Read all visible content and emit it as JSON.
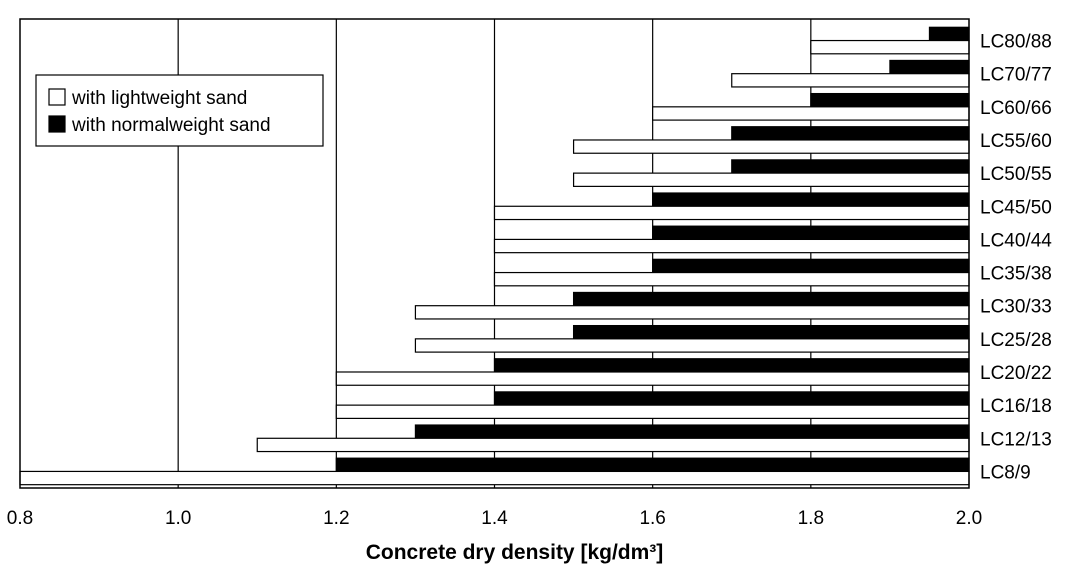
{
  "chart_data": {
    "type": "bar",
    "orientation": "horizontal",
    "xlabel": "Concrete dry density [kg/dm³]",
    "xlim": [
      0.8,
      2.0
    ],
    "xticks": [
      "0.8",
      "1.0",
      "1.2",
      "1.4",
      "1.6",
      "1.8",
      "2.0"
    ],
    "grid": "vertical",
    "legend_position": "upper-left",
    "bar_max": 2.0,
    "categories": [
      "LC80/88",
      "LC70/77",
      "LC60/66",
      "LC55/60",
      "LC50/55",
      "LC45/50",
      "LC40/44",
      "LC35/38",
      "LC30/33",
      "LC25/28",
      "LC20/22",
      "LC16/18",
      "LC12/13",
      "LC8/9"
    ],
    "series": [
      {
        "name": "with normalweight sand",
        "color": "#000000",
        "values": [
          1.95,
          1.9,
          1.8,
          1.7,
          1.7,
          1.6,
          1.6,
          1.6,
          1.5,
          1.5,
          1.4,
          1.4,
          1.3,
          1.2
        ]
      },
      {
        "name": "with lightweight sand",
        "color": "#ffffff",
        "values": [
          1.8,
          1.7,
          1.6,
          1.5,
          1.5,
          1.4,
          1.4,
          1.4,
          1.3,
          1.3,
          1.2,
          1.2,
          1.1,
          0.8
        ]
      }
    ]
  }
}
